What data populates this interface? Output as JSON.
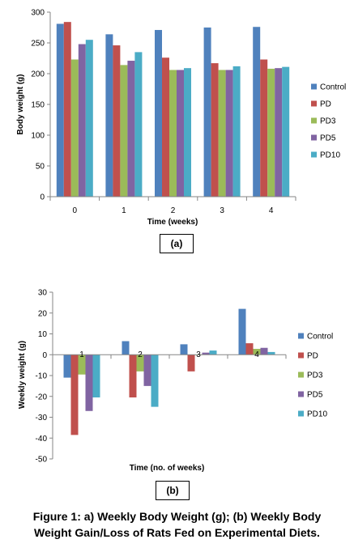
{
  "colors": {
    "Control": "#4F81BD",
    "PD": "#C0504D",
    "PD3": "#9BBB59",
    "PD5": "#8064A2",
    "PD10": "#4BACC6"
  },
  "chart_data": [
    {
      "type": "bar",
      "categories": [
        "0",
        "1",
        "2",
        "3",
        "4"
      ],
      "series": [
        {
          "name": "Control",
          "values": [
            281,
            264,
            271,
            275,
            276
          ]
        },
        {
          "name": "PD",
          "values": [
            284,
            246,
            226,
            217,
            223
          ]
        },
        {
          "name": "PD3",
          "values": [
            223,
            214,
            206,
            206,
            208
          ]
        },
        {
          "name": "PD5",
          "values": [
            248,
            221,
            206,
            206,
            209
          ]
        },
        {
          "name": "PD10",
          "values": [
            255,
            235,
            209,
            212,
            211
          ]
        }
      ],
      "ylim": [
        0,
        300
      ],
      "yticks": [
        "0",
        "50",
        "100",
        "150",
        "200",
        "250",
        "300"
      ],
      "xlabel": "Time (weeks)",
      "ylabel": "Body weight (g)",
      "legend": "right",
      "grid": false,
      "panel_label": "(a)"
    },
    {
      "type": "bar",
      "categories": [
        "1",
        "2",
        "3",
        "4"
      ],
      "series": [
        {
          "name": "Control",
          "values": [
            -11,
            6.5,
            5,
            22
          ]
        },
        {
          "name": "PD",
          "values": [
            -38.5,
            -20.5,
            -8,
            5.5
          ]
        },
        {
          "name": "PD3",
          "values": [
            -9.5,
            -8,
            0,
            2.8
          ]
        },
        {
          "name": "PD5",
          "values": [
            -27,
            -15,
            1,
            3.3
          ]
        },
        {
          "name": "PD10",
          "values": [
            -20.5,
            -25,
            2,
            1.3
          ]
        }
      ],
      "ylim": [
        -50,
        30
      ],
      "yticks": [
        "-50",
        "-40",
        "-30",
        "-20",
        "-10",
        "0",
        "10",
        "20",
        "30"
      ],
      "xlabel": "Time (no. of weeks)",
      "ylabel": "Weekly weight (g)",
      "legend": "right",
      "grid": false,
      "panel_label": "(b)"
    }
  ],
  "caption": {
    "line1": "Figure 1: a) Weekly Body Weight (g); (b) Weekly Body",
    "line2": "Weight Gain/Loss of Rats Fed on Experimental Diets."
  }
}
